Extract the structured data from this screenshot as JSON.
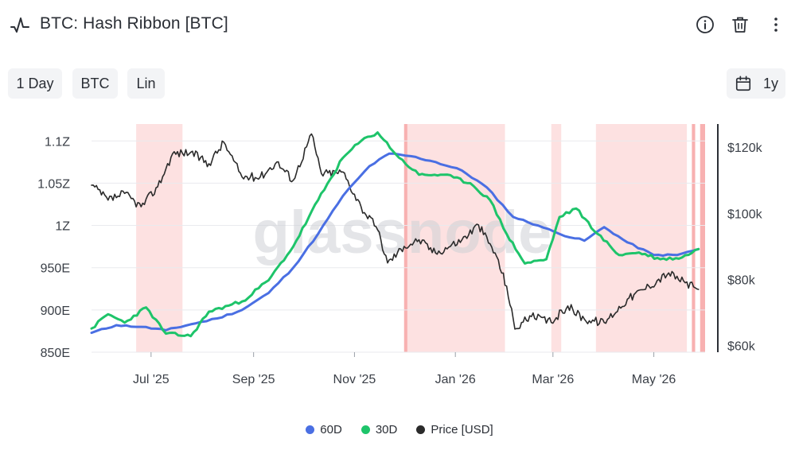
{
  "header": {
    "title": "BTC: Hash Ribbon [BTC]",
    "icons": [
      "chart-pulse-icon",
      "info-icon",
      "trash-icon",
      "more-vertical-icon"
    ]
  },
  "toolbar": {
    "resolution": "1 Day",
    "asset": "BTC",
    "scale": "Lin",
    "range": "1y"
  },
  "watermark": "glassnode",
  "chart_data": {
    "type": "line",
    "x_ticks": [
      "Jul '25",
      "Sep '25",
      "Nov '25",
      "Jan '26",
      "Mar '26",
      "May '26"
    ],
    "y_left_ticks": [
      "850E",
      "900E",
      "950E",
      "1Z",
      "1.05Z",
      "1.1Z"
    ],
    "y_left_range": [
      850,
      1120
    ],
    "y_left_unit": "EH/s",
    "y_right_ticks": [
      "$60k",
      "$80k",
      "$100k",
      "$120k"
    ],
    "y_right_range": [
      58000,
      127000
    ],
    "x_range": [
      "2025-05-26",
      "2026-06-01"
    ],
    "grid": true,
    "legend_position": "bottom",
    "series": [
      {
        "name": "60D",
        "color": "#4a6fe3",
        "axis": "left",
        "points": [
          [
            "2025-05-26",
            873
          ],
          [
            "2025-06-10",
            882
          ],
          [
            "2025-06-25",
            880
          ],
          [
            "2025-07-10",
            876
          ],
          [
            "2025-07-25",
            883
          ],
          [
            "2025-08-10",
            890
          ],
          [
            "2025-08-25",
            900
          ],
          [
            "2025-09-10",
            920
          ],
          [
            "2025-09-25",
            950
          ],
          [
            "2025-10-10",
            990
          ],
          [
            "2025-10-25",
            1035
          ],
          [
            "2025-11-10",
            1070
          ],
          [
            "2025-11-22",
            1085
          ],
          [
            "2025-12-05",
            1082
          ],
          [
            "2025-12-20",
            1075
          ],
          [
            "2026-01-05",
            1065
          ],
          [
            "2026-01-20",
            1045
          ],
          [
            "2026-02-05",
            1010
          ],
          [
            "2026-02-20",
            1000
          ],
          [
            "2026-03-05",
            990
          ],
          [
            "2026-03-20",
            982
          ],
          [
            "2026-04-01",
            998
          ],
          [
            "2026-04-15",
            980
          ],
          [
            "2026-05-01",
            965
          ],
          [
            "2026-05-15",
            965
          ],
          [
            "2026-05-28",
            972
          ]
        ]
      },
      {
        "name": "30D",
        "color": "#1ec46a",
        "axis": "left",
        "points": [
          [
            "2025-05-26",
            878
          ],
          [
            "2025-06-05",
            895
          ],
          [
            "2025-06-15",
            885
          ],
          [
            "2025-06-28",
            903
          ],
          [
            "2025-07-10",
            872
          ],
          [
            "2025-07-25",
            869
          ],
          [
            "2025-08-05",
            898
          ],
          [
            "2025-08-25",
            910
          ],
          [
            "2025-09-10",
            935
          ],
          [
            "2025-09-25",
            975
          ],
          [
            "2025-10-10",
            1030
          ],
          [
            "2025-10-25",
            1080
          ],
          [
            "2025-11-05",
            1100
          ],
          [
            "2025-11-15",
            1110
          ],
          [
            "2025-11-28",
            1080
          ],
          [
            "2025-12-10",
            1060
          ],
          [
            "2025-12-25",
            1060
          ],
          [
            "2026-01-10",
            1050
          ],
          [
            "2026-01-22",
            1030
          ],
          [
            "2026-02-01",
            990
          ],
          [
            "2026-02-12",
            955
          ],
          [
            "2026-02-25",
            960
          ],
          [
            "2026-03-05",
            1010
          ],
          [
            "2026-03-15",
            1020
          ],
          [
            "2026-03-28",
            990
          ],
          [
            "2026-04-10",
            965
          ],
          [
            "2026-04-22",
            968
          ],
          [
            "2026-05-05",
            960
          ],
          [
            "2026-05-18",
            962
          ],
          [
            "2026-05-28",
            972
          ]
        ]
      },
      {
        "name": "Price [USD]",
        "color": "#2b2b2b",
        "axis": "right",
        "points": [
          [
            "2025-05-26",
            108500
          ],
          [
            "2025-06-05",
            104000
          ],
          [
            "2025-06-15",
            106000
          ],
          [
            "2025-06-25",
            102000
          ],
          [
            "2025-07-05",
            108000
          ],
          [
            "2025-07-14",
            118000
          ],
          [
            "2025-07-25",
            118500
          ],
          [
            "2025-08-05",
            115000
          ],
          [
            "2025-08-14",
            121500
          ],
          [
            "2025-08-25",
            111000
          ],
          [
            "2025-09-05",
            111000
          ],
          [
            "2025-09-15",
            115500
          ],
          [
            "2025-09-25",
            110000
          ],
          [
            "2025-10-06",
            124000
          ],
          [
            "2025-10-12",
            112000
          ],
          [
            "2025-10-25",
            112500
          ],
          [
            "2025-11-05",
            102000
          ],
          [
            "2025-11-15",
            95000
          ],
          [
            "2025-11-21",
            85000
          ],
          [
            "2025-12-01",
            90000
          ],
          [
            "2025-12-10",
            92000
          ],
          [
            "2025-12-20",
            88000
          ],
          [
            "2026-01-05",
            92000
          ],
          [
            "2026-01-15",
            96500
          ],
          [
            "2026-01-25",
            88000
          ],
          [
            "2026-02-01",
            78000
          ],
          [
            "2026-02-06",
            65000
          ],
          [
            "2026-02-15",
            69000
          ],
          [
            "2026-02-28",
            67000
          ],
          [
            "2026-03-10",
            72000
          ],
          [
            "2026-03-20",
            68000
          ],
          [
            "2026-04-01",
            67000
          ],
          [
            "2026-04-15",
            74000
          ],
          [
            "2026-04-28",
            78000
          ],
          [
            "2026-05-10",
            82000
          ],
          [
            "2026-05-20",
            79000
          ],
          [
            "2026-05-28",
            77000
          ]
        ]
      }
    ],
    "shaded_regions": [
      [
        "2025-06-22",
        "2025-07-20"
      ],
      [
        "2025-12-01",
        "2025-12-03"
      ],
      [
        "2025-12-03",
        "2026-01-31"
      ],
      [
        "2026-02-28",
        "2026-03-06"
      ],
      [
        "2026-03-27",
        "2026-05-21"
      ],
      [
        "2026-05-24",
        "2026-05-26"
      ],
      [
        "2026-05-29",
        "2026-06-01"
      ]
    ]
  },
  "legend": {
    "items": [
      {
        "label": "60D",
        "color": "#4a6fe3"
      },
      {
        "label": "30D",
        "color": "#1ec46a"
      },
      {
        "label": "Price [USD]",
        "color": "#2b2b2b"
      }
    ]
  }
}
